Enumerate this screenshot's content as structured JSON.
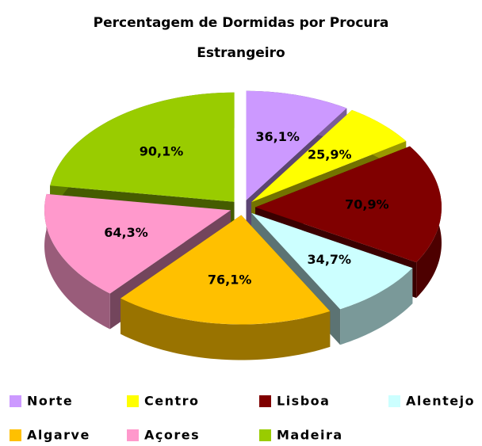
{
  "chart_data": {
    "type": "pie",
    "title": "Percentagem de Dormidas por Procura Estrangeiro",
    "categories": [
      "Norte",
      "Centro",
      "Lisboa",
      "Alentejo",
      "Algarve",
      "Açores",
      "Madeira"
    ],
    "values": [
      36.1,
      25.9,
      70.9,
      34.7,
      76.1,
      64.3,
      90.1
    ],
    "value_labels": [
      "36,1%",
      "25,9%",
      "70,9%",
      "34,7%",
      "76,1%",
      "64,3%",
      "90,1%"
    ],
    "colors": [
      "#cc99ff",
      "#ffff00",
      "#800000",
      "#ccffff",
      "#ffc000",
      "#ff99cc",
      "#99cc00"
    ],
    "legend": "bottom"
  }
}
